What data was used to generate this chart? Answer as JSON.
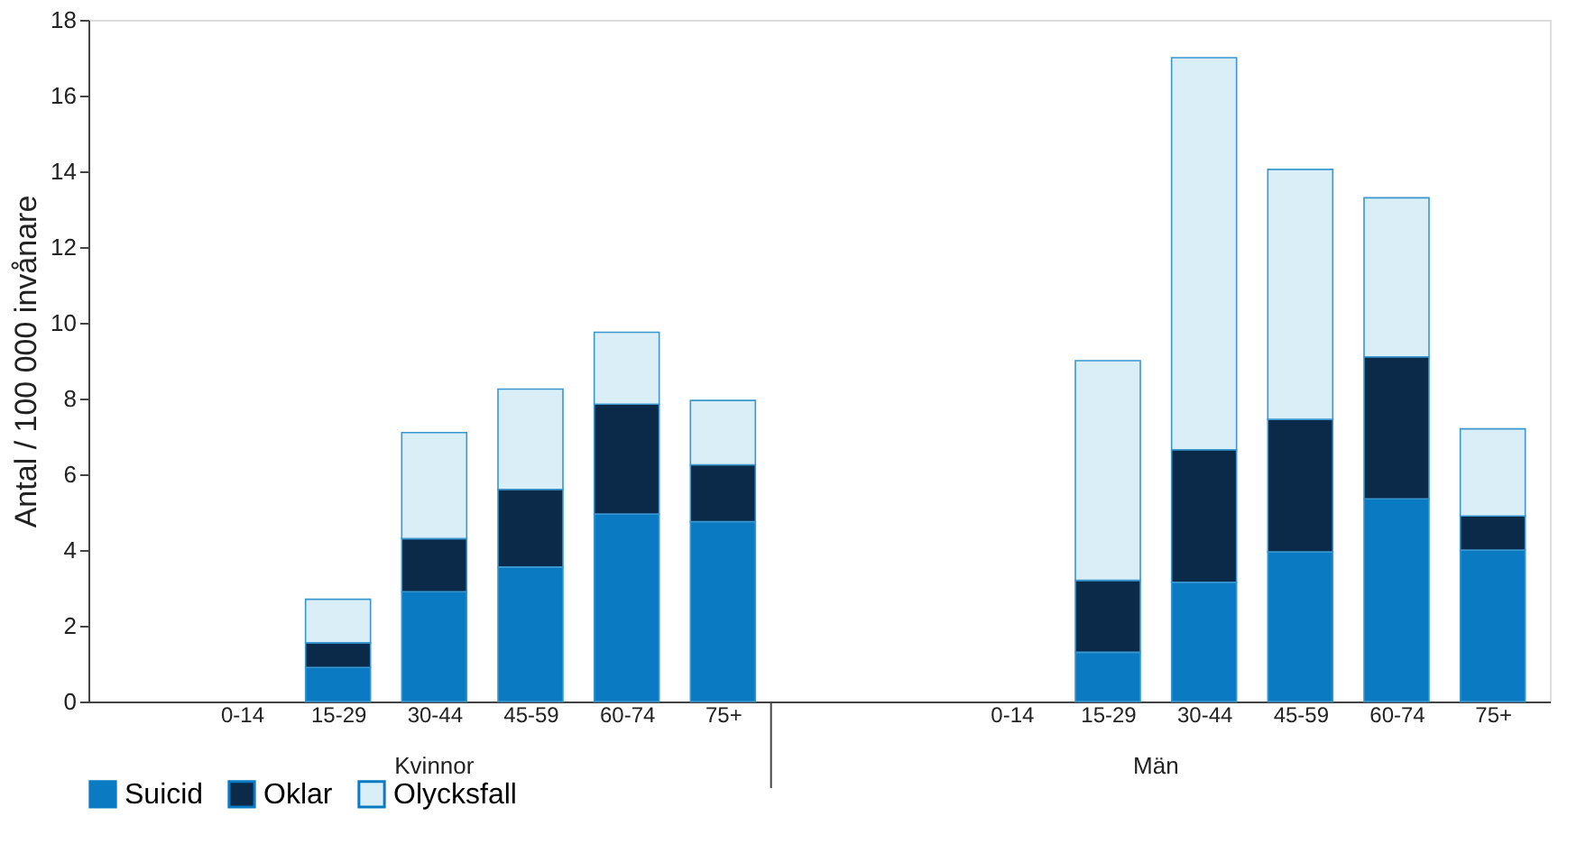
{
  "chart_data": {
    "type": "bar",
    "stacked": true,
    "ylabel": "Antal / 100 000 invånare",
    "categories": [
      null,
      "0-14",
      "15-29",
      "30-44",
      "45-59",
      "60-74",
      "75+",
      null,
      null,
      "0-14",
      "15-29",
      "30-44",
      "45-59",
      "60-74",
      "75+"
    ],
    "series": [
      {
        "name": "Suicid",
        "color": "#0a7bc2",
        "values": [
          null,
          null,
          0.9,
          2.9,
          3.55,
          4.95,
          4.75,
          null,
          null,
          null,
          1.3,
          3.15,
          3.95,
          5.35,
          4.0
        ]
      },
      {
        "name": "Oklar",
        "color": "#0b2a4a",
        "values": [
          null,
          null,
          0.65,
          1.4,
          2.05,
          2.9,
          1.5,
          null,
          null,
          null,
          1.9,
          3.5,
          3.5,
          3.75,
          0.9
        ]
      },
      {
        "name": "Olycksfall",
        "color": "#d9eef7",
        "values": [
          null,
          null,
          1.15,
          2.8,
          2.65,
          1.9,
          1.7,
          null,
          null,
          null,
          5.8,
          10.35,
          6.6,
          4.2,
          2.3
        ]
      }
    ],
    "annotations": [
      "Kvinnor",
      "Män"
    ],
    "ylim": [
      0,
      18
    ],
    "yticks": [
      0,
      2,
      4,
      6,
      8,
      10,
      12,
      14,
      16,
      18
    ],
    "grid": false,
    "legend": "bottom"
  }
}
